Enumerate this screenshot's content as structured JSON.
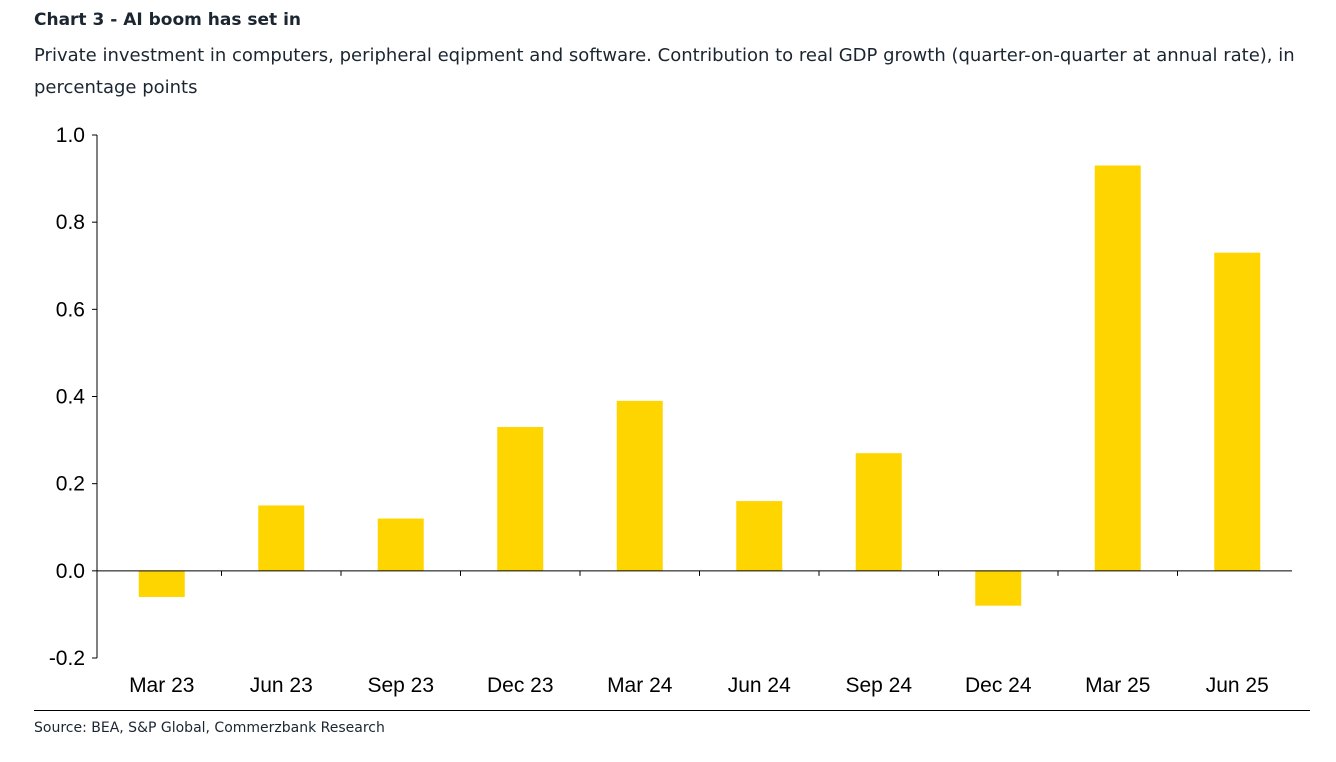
{
  "header": {
    "title": "Chart 3 - AI boom has set in",
    "subtitle": "Private investment in computers, peripheral eqipment and software. Contribution to real GDP growth (quarter-on-quarter at annual rate), in percentage points"
  },
  "footer": {
    "source": "Source: BEA, S&P Global, Commerzbank Research"
  },
  "colors": {
    "bar": "#FFD500",
    "axis": "#000000"
  },
  "chart_data": {
    "type": "bar",
    "title": "Chart 3 - AI boom has set in",
    "subtitle": "Private investment in computers, peripheral eqipment and software. Contribution to real GDP growth (quarter-on-quarter at annual rate), in percentage points",
    "categories": [
      "Mar 23",
      "Jun 23",
      "Sep 23",
      "Dec 23",
      "Mar 24",
      "Jun 24",
      "Sep 24",
      "Dec 24",
      "Mar 25",
      "Jun 25"
    ],
    "values": [
      -0.06,
      0.15,
      0.12,
      0.33,
      0.39,
      0.16,
      0.27,
      -0.08,
      0.93,
      0.73
    ],
    "ylim": [
      -0.2,
      1.0
    ],
    "yticks": [
      "-0.2",
      "0.0",
      "0.2",
      "0.4",
      "0.6",
      "0.8",
      "1.0"
    ],
    "xlabel": "",
    "ylabel": "",
    "grid": false,
    "legend": "none"
  }
}
